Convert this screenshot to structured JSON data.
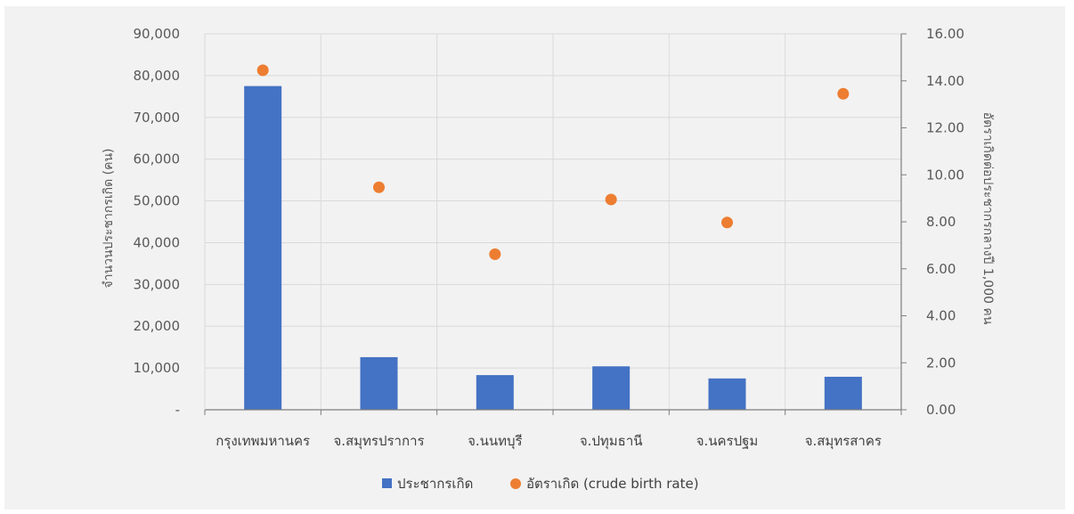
{
  "chart_data": {
    "type": "bar",
    "categories": [
      "กรุงเทพมหานคร",
      "จ.สมุทรปราการ",
      "จ.นนทบุรี",
      "จ.ปทุมธานี",
      "จ.นครปฐม",
      "จ.สมุทรสาคร"
    ],
    "series": [
      {
        "name": "ประชากรเกิด",
        "type": "bar",
        "axis": "left",
        "color": "#4472c4",
        "values": [
          77500,
          12600,
          8300,
          10400,
          7500,
          7900
        ]
      },
      {
        "name": "อัตราเกิด (crude birth rate)",
        "type": "scatter",
        "axis": "right",
        "color": "#ed7d31",
        "values": [
          14.45,
          9.47,
          6.62,
          8.95,
          7.97,
          13.45
        ]
      }
    ],
    "y_left": {
      "label": "จำนวนประชากรเกิด (คน)",
      "lim": [
        0,
        90000
      ],
      "ticks": [
        "-",
        "10,000",
        "20,000",
        "30,000",
        "40,000",
        "50,000",
        "60,000",
        "70,000",
        "80,000",
        "90,000"
      ]
    },
    "y_right": {
      "label": "อัตราเกิดต่อประชากรกลางปี 1,000 คน",
      "lim": [
        0,
        16
      ],
      "ticks": [
        "0.00",
        "2.00",
        "4.00",
        "6.00",
        "8.00",
        "10.00",
        "12.00",
        "14.00",
        "16.00"
      ]
    },
    "grid": true,
    "legend_position": "bottom"
  }
}
